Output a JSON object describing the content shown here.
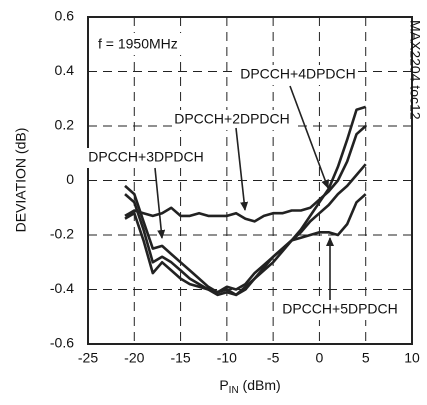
{
  "chart_data": {
    "type": "line",
    "x_label": {
      "main": "P",
      "sub": "IN",
      "rest": " (dBm)"
    },
    "y_label": "DEVIATION (dB)",
    "annotations": [
      "f = 1950MHz",
      "MAX2204 toc12"
    ],
    "x": [
      -21,
      -20,
      -19,
      -18,
      -17,
      -16,
      -15,
      -14,
      -13,
      -12,
      -11,
      -10,
      -9,
      -8,
      -7,
      -6,
      -5,
      -4,
      -3,
      -2,
      -1,
      0,
      1,
      2,
      3,
      4,
      5
    ],
    "series": [
      {
        "name": "DPCCH+2DPDCH",
        "color": "#222222",
        "values": [
          -0.13,
          -0.11,
          -0.12,
          -0.13,
          -0.12,
          -0.1,
          -0.13,
          -0.13,
          -0.12,
          -0.13,
          -0.13,
          -0.13,
          -0.12,
          -0.14,
          -0.15,
          -0.13,
          -0.12,
          -0.12,
          -0.11,
          -0.11,
          -0.1,
          -0.07,
          -0.04,
          0.0,
          0.07,
          0.17,
          0.2
        ]
      },
      {
        "name": "DPCCH+4DPDCH",
        "color": "#222222",
        "values": [
          -0.02,
          -0.05,
          -0.15,
          -0.25,
          -0.24,
          -0.27,
          -0.3,
          -0.33,
          -0.36,
          -0.39,
          -0.41,
          -0.4,
          -0.42,
          -0.39,
          -0.36,
          -0.33,
          -0.3,
          -0.26,
          -0.22,
          -0.18,
          -0.13,
          -0.08,
          -0.03,
          0.05,
          0.15,
          0.26,
          0.27
        ]
      },
      {
        "name": "DPCCH+3DPDCH",
        "color": "#222222",
        "values": [
          -0.05,
          -0.08,
          -0.18,
          -0.3,
          -0.28,
          -0.3,
          -0.33,
          -0.36,
          -0.38,
          -0.4,
          -0.41,
          -0.39,
          -0.4,
          -0.38,
          -0.34,
          -0.31,
          -0.28,
          -0.25,
          -0.22,
          -0.19,
          -0.15,
          -0.12,
          -0.09,
          -0.05,
          -0.02,
          0.02,
          0.06
        ]
      },
      {
        "name": "DPCCH+5DPDCH",
        "color": "#222222",
        "values": [
          -0.14,
          -0.12,
          -0.22,
          -0.34,
          -0.3,
          -0.33,
          -0.36,
          -0.38,
          -0.39,
          -0.4,
          -0.42,
          -0.41,
          -0.42,
          -0.4,
          -0.36,
          -0.32,
          -0.28,
          -0.25,
          -0.22,
          -0.21,
          -0.2,
          -0.19,
          -0.19,
          -0.2,
          -0.16,
          -0.08,
          -0.05
        ]
      }
    ],
    "xlim": [
      -25,
      10
    ],
    "xticks": [
      -25,
      -20,
      -15,
      -10,
      -5,
      0,
      5,
      10
    ],
    "ylim": [
      -0.6,
      0.6
    ],
    "yticks": [
      0.6,
      0.4,
      0.2,
      0,
      -0.2,
      -0.4,
      -0.6
    ],
    "grid": true
  }
}
